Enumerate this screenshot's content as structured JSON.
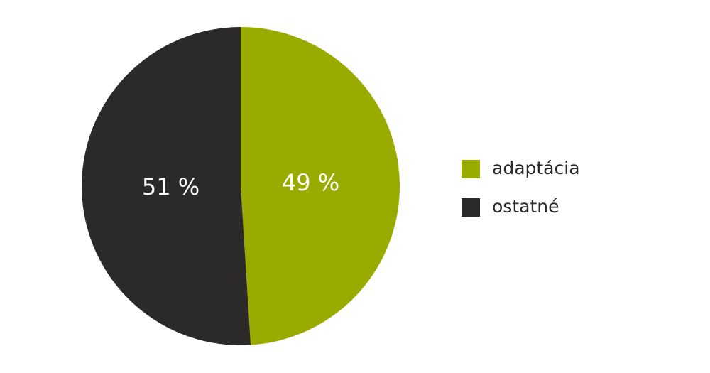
{
  "chart_data": {
    "type": "pie",
    "categories": [
      "adaptácia",
      "ostatné"
    ],
    "values": [
      49,
      51
    ],
    "value_labels": [
      "49 %",
      "51 %"
    ],
    "colors": [
      "#9aab00",
      "#2b2a29"
    ],
    "legend": "right"
  }
}
